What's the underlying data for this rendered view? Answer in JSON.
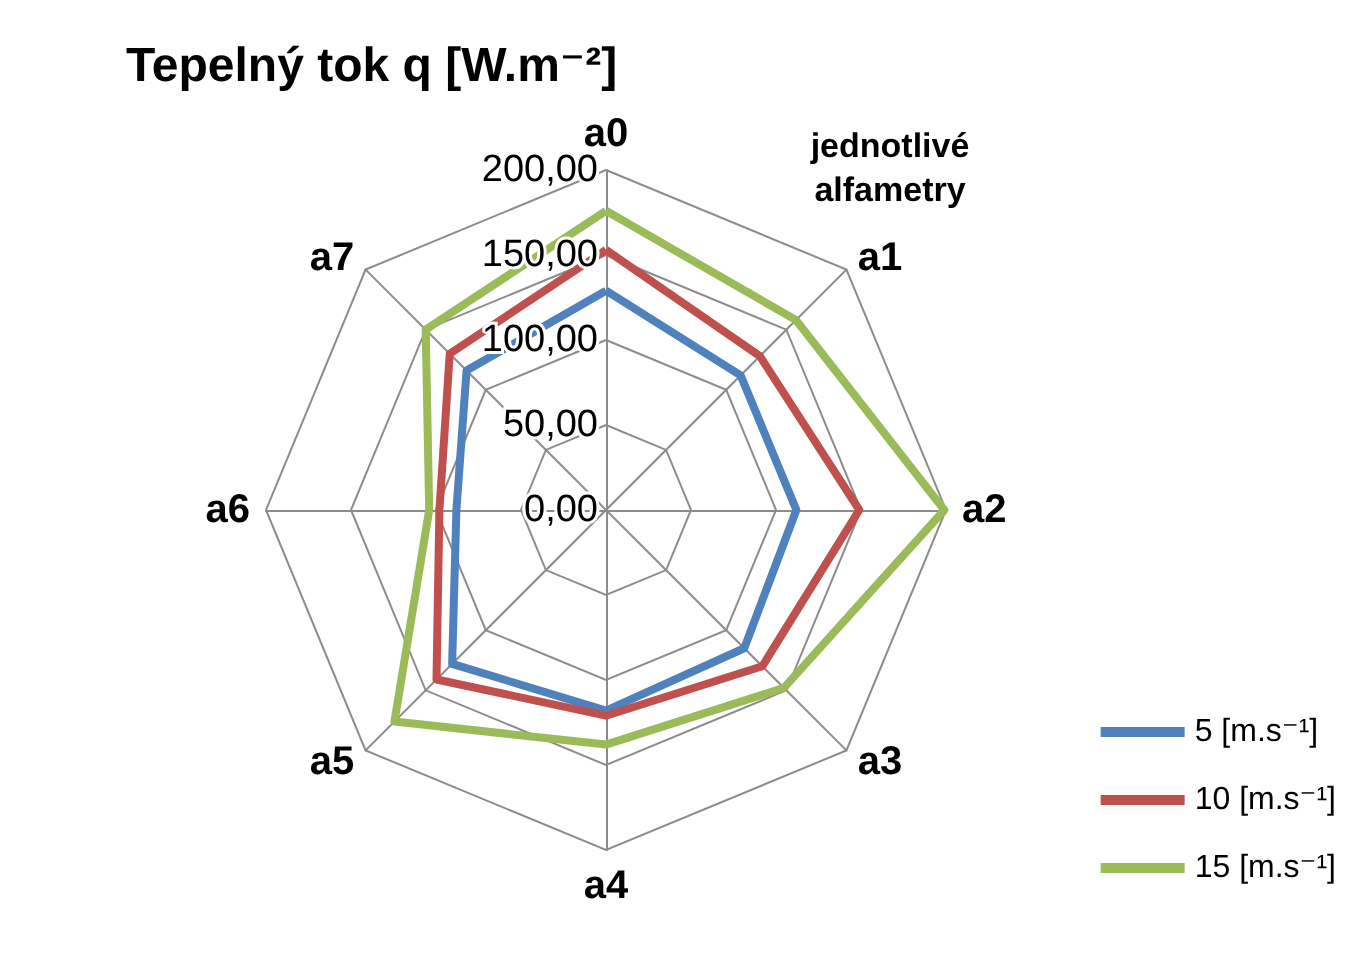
{
  "chart_data": {
    "type": "radar",
    "title": "Tepelný tok q [W.m⁻²]",
    "annotations": [
      "jednotlivé alfametry"
    ],
    "categories": [
      "a0",
      "a1",
      "a2",
      "a3",
      "a4",
      "a5",
      "a6",
      "a7"
    ],
    "ylim": [
      0,
      200
    ],
    "yticks": [
      {
        "value": 0,
        "label": "0,00"
      },
      {
        "value": 50,
        "label": "50,00"
      },
      {
        "value": 100,
        "label": "100,00"
      },
      {
        "value": 150,
        "label": "150,00"
      },
      {
        "value": 200,
        "label": "200,00"
      }
    ],
    "legend": "bottom right",
    "grid": true,
    "marker": "none",
    "line_style": "solid",
    "series": [
      {
        "name": "5 [m.s⁻¹]",
        "color": "#4f81bd",
        "values": [
          129,
          112,
          112,
          115,
          118,
          128,
          88,
          116
        ]
      },
      {
        "name": "10 [m.s⁻¹]",
        "color": "#c0504d",
        "values": [
          153,
          128,
          149,
          130,
          121,
          141,
          98,
          130
        ]
      },
      {
        "name": "15 [m.s⁻¹]",
        "color": "#9bbb59",
        "values": [
          176,
          158,
          199,
          148,
          138,
          176,
          104,
          150
        ]
      }
    ]
  }
}
